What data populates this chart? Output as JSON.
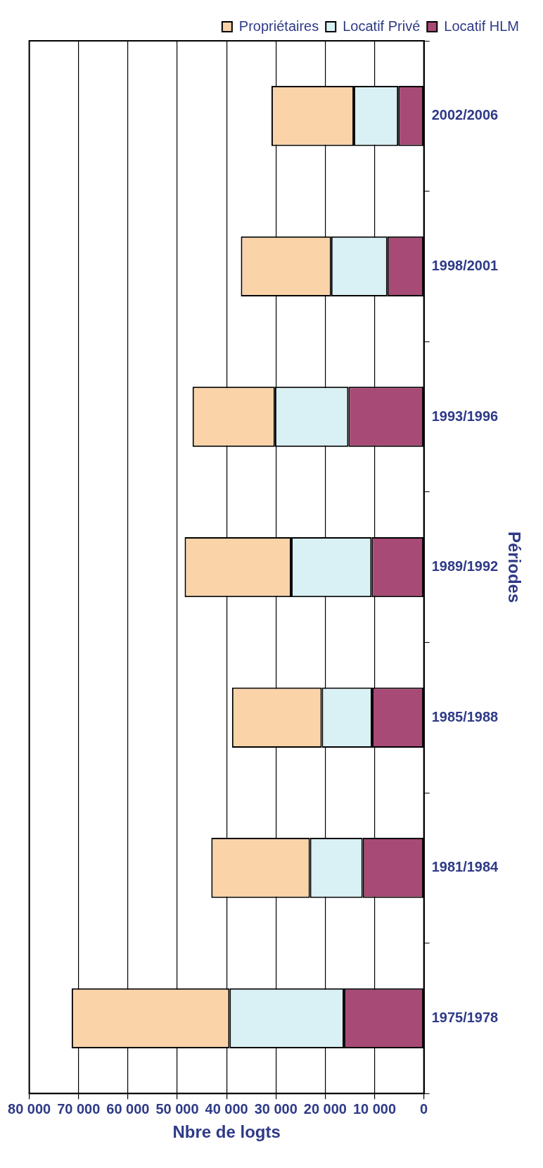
{
  "chart_data": {
    "type": "bar",
    "stacked": true,
    "orientation": "horizontal",
    "xlabel": "Nbre de logts",
    "ylabel": "Périodes",
    "categories": [
      "2002/2006",
      "1998/2001",
      "1993/1996",
      "1989/1992",
      "1985/1988",
      "1981/1984",
      "1975/1978"
    ],
    "series": [
      {
        "name": "Locatif HLM",
        "color": "#a84a76",
        "values": [
          5200,
          7400,
          15300,
          10600,
          10500,
          12400,
          16200
        ]
      },
      {
        "name": "Locatif Privé",
        "color": "#d9f0f5",
        "values": [
          9000,
          11400,
          14900,
          16300,
          10200,
          10700,
          23200
        ]
      },
      {
        "name": "Propriétaires",
        "color": "#fbd3a8",
        "values": [
          16700,
          18300,
          16700,
          21600,
          18200,
          20000,
          32000
        ]
      }
    ],
    "xlim": [
      80000,
      0
    ],
    "xticks": [
      {
        "value": 80000,
        "label": "80 000"
      },
      {
        "value": 70000,
        "label": "70 000"
      },
      {
        "value": 60000,
        "label": "60 000"
      },
      {
        "value": 50000,
        "label": "50 000"
      },
      {
        "value": 40000,
        "label": "40 000"
      },
      {
        "value": 30000,
        "label": "30 000"
      },
      {
        "value": 20000,
        "label": "20 000"
      },
      {
        "value": 10000,
        "label": "10 000"
      },
      {
        "value": 0,
        "label": "0"
      }
    ],
    "grid": "x",
    "legend": "top right"
  }
}
